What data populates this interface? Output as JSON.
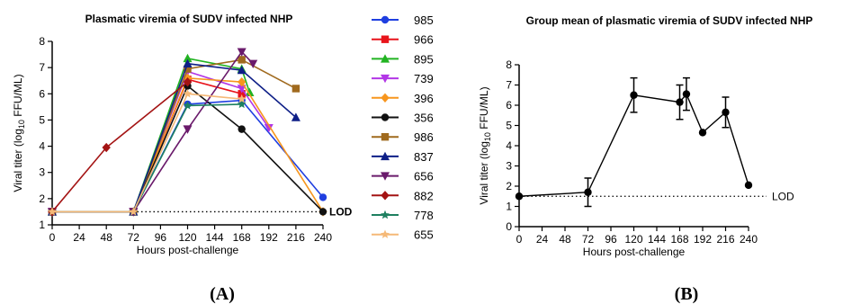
{
  "chart_data": [
    {
      "panel": "A",
      "type": "line",
      "title": "Plasmatic viremia of SUDV infected NHP",
      "xlabel": "Hours post-challenge",
      "ylabel": "Viral titer (log10 FFU/ML)",
      "ylabel_parts": {
        "pre": "Viral titer (log",
        "sub": "10",
        "post": " FFU/ML)"
      },
      "xlim": [
        0,
        240
      ],
      "ylim": [
        1,
        8
      ],
      "xticks": [
        0,
        24,
        48,
        72,
        96,
        120,
        144,
        168,
        192,
        216,
        240
      ],
      "yticks": [
        1,
        2,
        3,
        4,
        5,
        6,
        7,
        8
      ],
      "lod": {
        "y": 1.5,
        "label": "LOD"
      },
      "series": [
        {
          "name": "985",
          "color": "#1f3fe0",
          "marker": "circle",
          "x": [
            0,
            72,
            120,
            168,
            240
          ],
          "y": [
            1.5,
            1.5,
            5.6,
            5.75,
            2.05
          ]
        },
        {
          "name": "966",
          "color": "#e8141b",
          "marker": "square",
          "x": [
            0,
            72,
            120,
            168
          ],
          "y": [
            1.5,
            1.5,
            6.55,
            6.0
          ]
        },
        {
          "name": "895",
          "color": "#22b322",
          "marker": "triangle-up",
          "x": [
            0,
            72,
            120,
            168,
            175
          ],
          "y": [
            1.5,
            1.5,
            7.35,
            6.95,
            6.05
          ]
        },
        {
          "name": "739",
          "color": "#b236e6",
          "marker": "triangle-down",
          "x": [
            0,
            72,
            120,
            168,
            192
          ],
          "y": [
            1.5,
            1.5,
            6.85,
            6.2,
            4.7
          ]
        },
        {
          "name": "396",
          "color": "#f7961e",
          "marker": "diamond",
          "x": [
            0,
            72,
            120,
            168,
            240
          ],
          "y": [
            1.5,
            1.5,
            6.6,
            6.45,
            1.5
          ]
        },
        {
          "name": "356",
          "color": "#111111",
          "marker": "circle",
          "x": [
            0,
            72,
            120,
            168,
            240
          ],
          "y": [
            1.5,
            1.5,
            6.3,
            4.65,
            1.5
          ]
        },
        {
          "name": "986",
          "color": "#a06a1e",
          "marker": "square",
          "x": [
            0,
            72,
            120,
            168,
            216
          ],
          "y": [
            1.5,
            1.5,
            6.95,
            7.3,
            6.2
          ]
        },
        {
          "name": "837",
          "color": "#0e1f87",
          "marker": "triangle-up",
          "x": [
            0,
            72,
            120,
            168,
            216
          ],
          "y": [
            1.5,
            1.5,
            7.15,
            6.9,
            5.1
          ]
        },
        {
          "name": "656",
          "color": "#6a1a6b",
          "marker": "triangle-down",
          "x": [
            0,
            72,
            120,
            168,
            178
          ],
          "y": [
            1.5,
            1.5,
            4.65,
            7.6,
            7.15
          ]
        },
        {
          "name": "882",
          "color": "#a41414",
          "marker": "diamond",
          "x": [
            0,
            48,
            120
          ],
          "y": [
            1.5,
            3.95,
            6.45
          ]
        },
        {
          "name": "778",
          "color": "#1e8060",
          "marker": "star",
          "x": [
            0,
            72,
            120,
            168
          ],
          "y": [
            1.5,
            1.5,
            5.55,
            5.6
          ]
        },
        {
          "name": "655",
          "color": "#f5b978",
          "marker": "star",
          "x": [
            0,
            72,
            120,
            168
          ],
          "y": [
            1.5,
            1.5,
            6.0,
            5.8
          ]
        }
      ]
    },
    {
      "panel": "B",
      "type": "line",
      "title": "Group mean of plasmatic viremia of SUDV infected NHP",
      "xlabel": "Hours post-challenge",
      "ylabel": "Viral titer (log10 FFU/ML)",
      "ylabel_parts": {
        "pre": "Viral titer (log",
        "sub": "10",
        "post": " FFU/ML)"
      },
      "xlim": [
        0,
        240
      ],
      "ylim": [
        0,
        8
      ],
      "xticks": [
        0,
        24,
        48,
        72,
        96,
        120,
        144,
        168,
        192,
        216,
        240
      ],
      "yticks": [
        0,
        1,
        2,
        3,
        4,
        5,
        6,
        7,
        8
      ],
      "lod": {
        "y": 1.5,
        "label": "LOD"
      },
      "series": [
        {
          "name": "",
          "color": "#000000",
          "marker": "circle",
          "x": [
            0,
            72,
            120,
            168,
            175,
            192,
            216,
            240
          ],
          "y": [
            1.5,
            1.7,
            6.5,
            6.15,
            6.55,
            4.65,
            5.65,
            2.05
          ],
          "err": [
            0,
            0.7,
            0.85,
            0.85,
            0.8,
            0,
            0.75,
            0
          ]
        }
      ]
    }
  ],
  "panel_labels": {
    "a": "(A)",
    "b": "(B)"
  }
}
